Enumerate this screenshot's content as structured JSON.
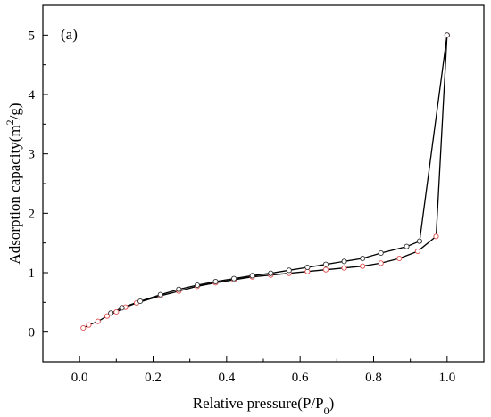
{
  "chart_data": {
    "type": "line",
    "panel_label": "(a)",
    "xlabel_main": "Relative pressure(P/P",
    "xlabel_sub": "0",
    "xlabel_end": ")",
    "ylabel_main": "Adsorption capacity(m",
    "ylabel_sup": "2",
    "ylabel_end": "/g)",
    "xlim": [
      -0.1,
      1.1
    ],
    "ylim": [
      -0.5,
      5.5
    ],
    "xticks": [
      0.0,
      0.2,
      0.4,
      0.6,
      0.8,
      1.0
    ],
    "xtick_labels": [
      "0.0",
      "0.2",
      "0.4",
      "0.6",
      "0.8",
      "1.0"
    ],
    "yticks": [
      0,
      1,
      2,
      3,
      4,
      5
    ],
    "ytick_labels": [
      "0",
      "1",
      "2",
      "3",
      "4",
      "5"
    ],
    "grid": false,
    "series": [
      {
        "role": "adsorption",
        "color": "#000000",
        "marker_stroke": "#e05050",
        "points": [
          [
            0.01,
            0.07
          ],
          [
            0.025,
            0.12
          ],
          [
            0.05,
            0.18
          ],
          [
            0.075,
            0.27
          ],
          [
            0.1,
            0.34
          ],
          [
            0.125,
            0.42
          ],
          [
            0.155,
            0.49
          ],
          [
            0.22,
            0.61
          ],
          [
            0.27,
            0.69
          ],
          [
            0.32,
            0.77
          ],
          [
            0.37,
            0.83
          ],
          [
            0.42,
            0.88
          ],
          [
            0.47,
            0.93
          ],
          [
            0.52,
            0.96
          ],
          [
            0.57,
            0.99
          ],
          [
            0.62,
            1.02
          ],
          [
            0.67,
            1.05
          ],
          [
            0.72,
            1.08
          ],
          [
            0.77,
            1.11
          ],
          [
            0.82,
            1.16
          ],
          [
            0.87,
            1.24
          ],
          [
            0.92,
            1.36
          ],
          [
            0.97,
            1.61
          ],
          [
            1.0,
            5.0
          ]
        ]
      },
      {
        "role": "desorption",
        "color": "#000000",
        "marker_stroke": "#333333",
        "points": [
          [
            1.0,
            5.0
          ],
          [
            0.925,
            1.53
          ],
          [
            0.89,
            1.44
          ],
          [
            0.82,
            1.33
          ],
          [
            0.77,
            1.24
          ],
          [
            0.72,
            1.19
          ],
          [
            0.67,
            1.14
          ],
          [
            0.62,
            1.09
          ],
          [
            0.57,
            1.04
          ],
          [
            0.52,
            0.99
          ],
          [
            0.47,
            0.95
          ],
          [
            0.42,
            0.9
          ],
          [
            0.37,
            0.85
          ],
          [
            0.32,
            0.79
          ],
          [
            0.27,
            0.72
          ],
          [
            0.22,
            0.63
          ],
          [
            0.165,
            0.52
          ],
          [
            0.115,
            0.41
          ],
          [
            0.085,
            0.32
          ]
        ]
      }
    ]
  }
}
